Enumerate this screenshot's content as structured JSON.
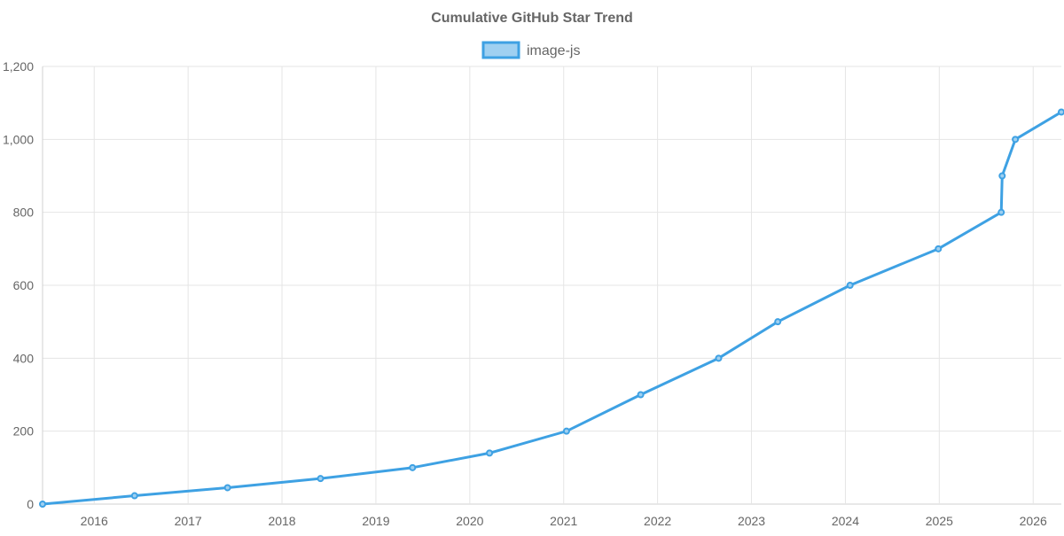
{
  "chart_data": {
    "type": "line",
    "title": "Cumulative GitHub Star Trend",
    "xlabel": "",
    "ylabel": "",
    "legend_position": "top-center",
    "grid": true,
    "x_ticks": [
      "2016",
      "2017",
      "2018",
      "2019",
      "2020",
      "2021",
      "2022",
      "2023",
      "2024",
      "2025",
      "2026"
    ],
    "xlim": [
      2015.45,
      2026.3
    ],
    "y_ticks": [
      0,
      200,
      400,
      600,
      800,
      1000,
      1200
    ],
    "y_tick_labels": [
      "0",
      "200",
      "400",
      "600",
      "800",
      "1,000",
      "1,200"
    ],
    "ylim": [
      0,
      1200
    ],
    "series": [
      {
        "name": "image-js",
        "color": "#3ea1e3",
        "fill_color": "#9fd0f1",
        "points": [
          {
            "x": 2015.45,
            "y": 0
          },
          {
            "x": 2016.43,
            "y": 23
          },
          {
            "x": 2017.42,
            "y": 45
          },
          {
            "x": 2018.41,
            "y": 70
          },
          {
            "x": 2019.39,
            "y": 100
          },
          {
            "x": 2020.21,
            "y": 140
          },
          {
            "x": 2021.03,
            "y": 200
          },
          {
            "x": 2021.82,
            "y": 300
          },
          {
            "x": 2022.65,
            "y": 400
          },
          {
            "x": 2023.28,
            "y": 500
          },
          {
            "x": 2024.05,
            "y": 600
          },
          {
            "x": 2024.99,
            "y": 700
          },
          {
            "x": 2025.66,
            "y": 800
          },
          {
            "x": 2025.67,
            "y": 900
          },
          {
            "x": 2025.81,
            "y": 1000
          },
          {
            "x": 2026.3,
            "y": 1075
          }
        ]
      }
    ]
  },
  "colors": {
    "grid": "#e5e5e5",
    "axis": "#d0d0d0",
    "text": "#666666",
    "title": "#666666"
  }
}
